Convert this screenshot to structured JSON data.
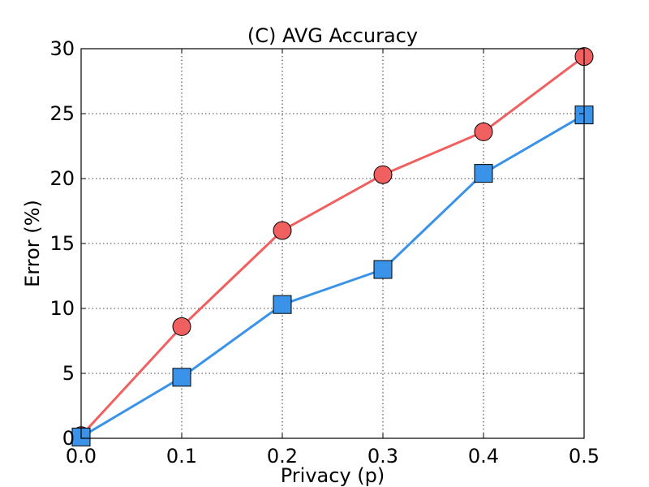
{
  "chart_data": {
    "type": "line",
    "title": "(C) AVG Accuracy",
    "xlabel": "Privacy (p)",
    "ylabel": "Error (%)",
    "xlim": [
      0.0,
      0.5
    ],
    "ylim": [
      0,
      30
    ],
    "x_ticks": [
      "0.0",
      "0.1",
      "0.2",
      "0.3",
      "0.4",
      "0.5"
    ],
    "y_ticks": [
      "0",
      "5",
      "10",
      "15",
      "20",
      "25",
      "30"
    ],
    "grid": true,
    "x": [
      0.0,
      0.1,
      0.2,
      0.3,
      0.4,
      0.5
    ],
    "series": [
      {
        "color": "#f06060",
        "marker": "circle",
        "values": [
          0.2,
          8.6,
          16.0,
          20.3,
          23.6,
          29.4
        ]
      },
      {
        "color": "#3a93e8",
        "marker": "square",
        "values": [
          0.1,
          4.7,
          10.3,
          13.0,
          20.4,
          24.9
        ]
      }
    ]
  }
}
